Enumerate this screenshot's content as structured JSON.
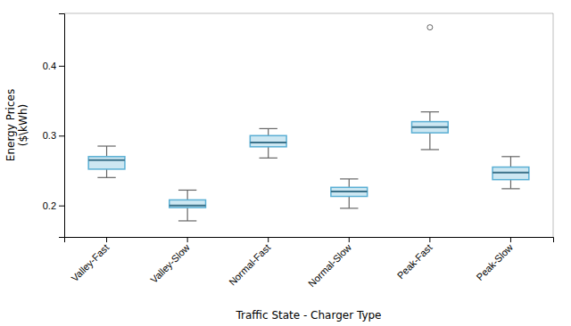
{
  "chart_data": {
    "type": "box",
    "categories": [
      "Valley-Fast",
      "Valley-Slow",
      "Normal-Fast",
      "Normal-Slow",
      "Peak-Fast",
      "Peak-Slow"
    ],
    "boxes": [
      {
        "whislo": 0.24,
        "q1": 0.252,
        "median": 0.265,
        "q3": 0.27,
        "whishi": 0.285,
        "fliers": []
      },
      {
        "whislo": 0.178,
        "q1": 0.197,
        "median": 0.2,
        "q3": 0.208,
        "whishi": 0.222,
        "fliers": []
      },
      {
        "whislo": 0.268,
        "q1": 0.284,
        "median": 0.29,
        "q3": 0.3,
        "whishi": 0.31,
        "fliers": []
      },
      {
        "whislo": 0.196,
        "q1": 0.213,
        "median": 0.22,
        "q3": 0.226,
        "whishi": 0.238,
        "fliers": []
      },
      {
        "whislo": 0.28,
        "q1": 0.304,
        "median": 0.312,
        "q3": 0.32,
        "whishi": 0.334,
        "fliers": [
          0.455
        ]
      },
      {
        "whislo": 0.224,
        "q1": 0.237,
        "median": 0.247,
        "q3": 0.255,
        "whishi": 0.27,
        "fliers": []
      }
    ],
    "color": "#5aafd4",
    "x_label": "Traffic State - Charger Type",
    "y_label": "Energy Prices\n($\\kWh)",
    "ylim": [
      0.155,
      0.475
    ],
    "yticks": [
      0.2,
      0.3,
      0.4
    ]
  }
}
